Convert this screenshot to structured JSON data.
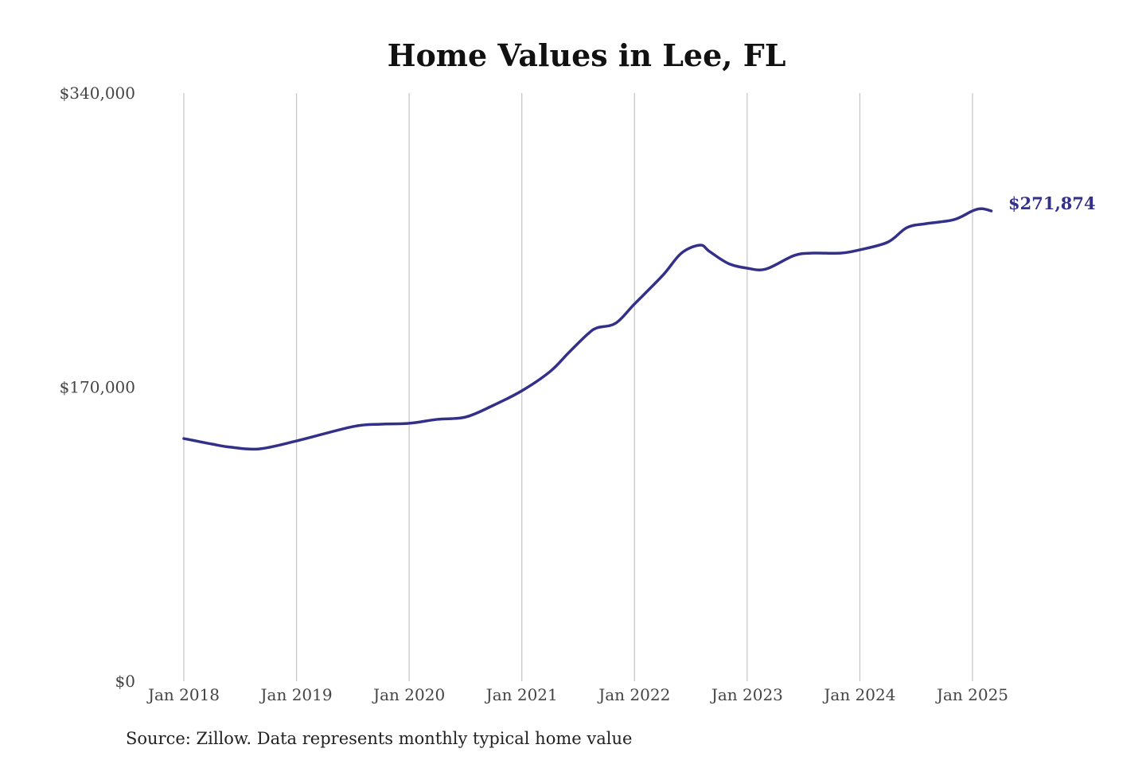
{
  "chart_data": {
    "type": "line",
    "title": "Home Values in Lee, FL",
    "xlabel": "",
    "ylabel": "",
    "ylim": [
      0,
      340000
    ],
    "y_ticks": [
      0,
      170000,
      340000
    ],
    "y_tick_labels": [
      "$0",
      "$170,000",
      "$340,000"
    ],
    "x_ticks": [
      "2018-01",
      "2019-01",
      "2020-01",
      "2021-01",
      "2022-01",
      "2023-01",
      "2024-01",
      "2025-01"
    ],
    "x_tick_labels": [
      "Jan 2018",
      "Jan 2019",
      "Jan 2020",
      "Jan 2021",
      "Jan 2022",
      "Jan 2023",
      "Jan 2024",
      "Jan 2025"
    ],
    "xlim": [
      "2018-01",
      "2025-03"
    ],
    "grid": "vertical",
    "series": [
      {
        "name": "Typical home value",
        "color": "#33308a",
        "x": [
          "2018-01",
          "2018-04",
          "2018-06",
          "2018-09",
          "2019-01",
          "2019-07",
          "2019-10",
          "2020-01",
          "2020-04",
          "2020-07",
          "2020-10",
          "2021-01",
          "2021-04",
          "2021-06",
          "2021-08",
          "2021-09",
          "2021-11",
          "2022-01",
          "2022-04",
          "2022-06",
          "2022-08",
          "2022-09",
          "2022-11",
          "2023-01",
          "2023-03",
          "2023-06",
          "2023-08",
          "2023-11",
          "2024-01",
          "2024-04",
          "2024-06",
          "2024-08",
          "2024-11",
          "2025-01",
          "2025-02",
          "2025-03"
        ],
        "values": [
          140300,
          137100,
          135300,
          134300,
          138900,
          147200,
          148600,
          149100,
          151400,
          152700,
          159600,
          167900,
          179000,
          190000,
          200600,
          204300,
          207000,
          218100,
          234600,
          247500,
          252100,
          248400,
          241500,
          238800,
          238300,
          246100,
          247500,
          247500,
          249400,
          253900,
          262200,
          264500,
          266800,
          271900,
          273200,
          271874
        ]
      }
    ],
    "end_label": "$271,874"
  },
  "source": "Source: Zillow. Data represents monthly typical home value"
}
